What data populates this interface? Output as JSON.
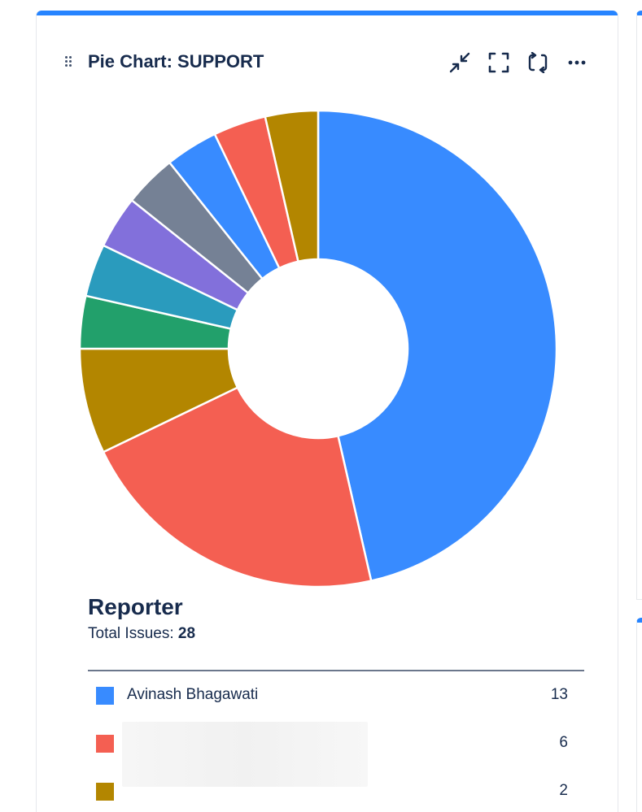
{
  "gadget": {
    "title": "Pie Chart: SUPPORT",
    "accent_color": "#2684ff",
    "actions": [
      {
        "name": "minimize-icon",
        "label": "Minimize"
      },
      {
        "name": "fullscreen-icon",
        "label": "Full screen"
      },
      {
        "name": "refresh-icon",
        "label": "Refresh"
      },
      {
        "name": "more-icon",
        "label": "More actions"
      }
    ]
  },
  "chart_data": {
    "type": "pie",
    "style": "donut",
    "total": 28,
    "slices": [
      {
        "label": "Avinash Bhagawati",
        "value": 13,
        "color": "#388bff"
      },
      {
        "label": "",
        "value": 6,
        "color": "#f45f52"
      },
      {
        "label": "",
        "value": 2,
        "color": "#b38600"
      },
      {
        "label": "",
        "value": 1,
        "color": "#22a06b"
      },
      {
        "label": "",
        "value": 1,
        "color": "#2a9bbd"
      },
      {
        "label": "",
        "value": 1,
        "color": "#8270db"
      },
      {
        "label": "",
        "value": 1,
        "color": "#758195"
      },
      {
        "label": "",
        "value": 1,
        "color": "#388bff"
      },
      {
        "label": "",
        "value": 1,
        "color": "#f45f52"
      },
      {
        "label": "",
        "value": 1,
        "color": "#b38600"
      }
    ]
  },
  "legend": {
    "title": "Reporter",
    "total_label": "Total Issues:",
    "total_value": "28",
    "rows": [
      {
        "name": "Avinash Bhagawati",
        "count": "13",
        "color": "#388bff"
      },
      {
        "name": "",
        "count": "6",
        "color": "#f45f52"
      },
      {
        "name": "",
        "count": "2",
        "color": "#b38600"
      }
    ]
  }
}
